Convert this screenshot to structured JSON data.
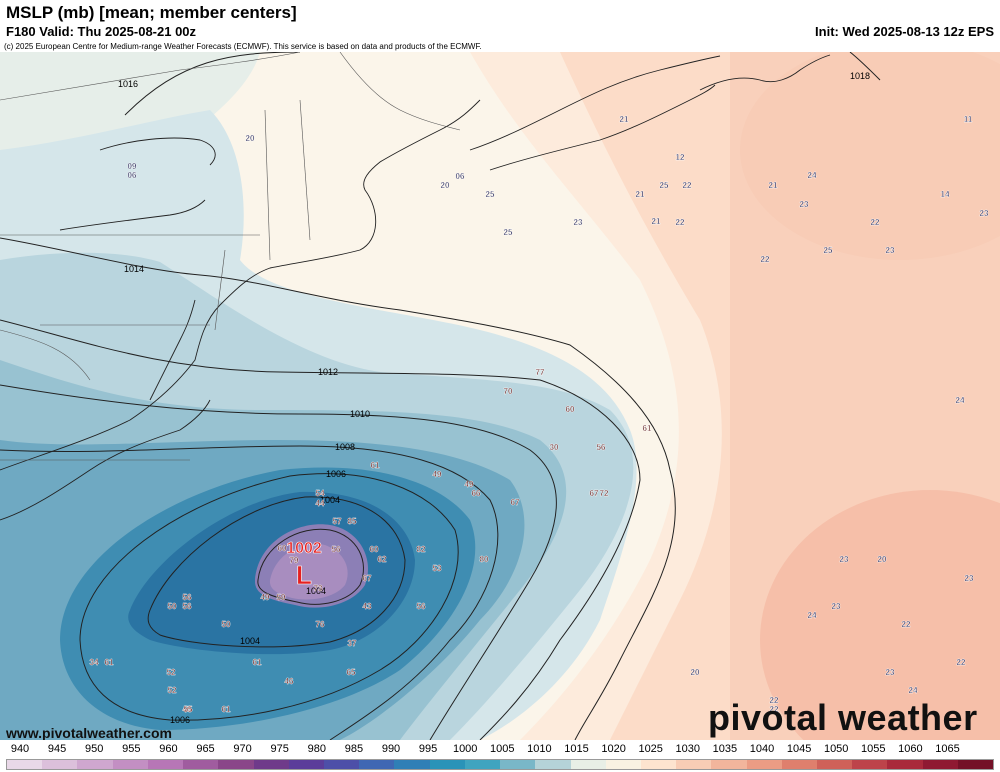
{
  "header": {
    "title": "MSLP (mb) [mean; member centers]",
    "valid": "F180 Valid: Thu 2025-08-21 00z",
    "init": "Init: Wed 2025-08-13 12z EPS",
    "copyright": "(c) 2025 European Centre for Medium-range Weather Forecasts (ECMWF). This service is based on data and products of the ECMWF."
  },
  "watermark": {
    "url": "www.pivotalweather.com",
    "brand": "pivotal weather"
  },
  "low_center": {
    "pressure": "1002",
    "symbol": "L"
  },
  "isobar_labels": [
    "1016",
    "1018",
    "1014",
    "1012",
    "1010",
    "1008",
    "1006",
    "1004",
    "1004",
    "1004",
    "1006"
  ],
  "member_labels": [
    "20",
    "09",
    "06",
    "20",
    "06",
    "25",
    "25",
    "21",
    "12",
    "21",
    "25",
    "22",
    "22",
    "23",
    "21",
    "23",
    "24",
    "22",
    "23",
    "22",
    "25",
    "21",
    "11",
    "14",
    "23",
    "77",
    "70",
    "60",
    "30",
    "56",
    "61",
    "67",
    "72",
    "61",
    "49",
    "49",
    "66",
    "67",
    "54",
    "44",
    "57",
    "85",
    "60",
    "56",
    "60",
    "62",
    "82",
    "79",
    "73",
    "67",
    "53",
    "80",
    "56",
    "50",
    "56",
    "56",
    "49",
    "59",
    "43",
    "50",
    "76",
    "61",
    "52",
    "37",
    "46",
    "34",
    "61",
    "52",
    "40",
    "65",
    "55",
    "61",
    "24",
    "23",
    "20",
    "23",
    "23",
    "24",
    "22",
    "20",
    "22",
    "23",
    "22",
    "22",
    "24"
  ],
  "colorbar": {
    "ticks": [
      "940",
      "945",
      "950",
      "955",
      "960",
      "965",
      "970",
      "975",
      "980",
      "985",
      "990",
      "995",
      "1000",
      "1005",
      "1010",
      "1015",
      "1020",
      "1025",
      "1030",
      "1035",
      "1040",
      "1045",
      "1050",
      "1055",
      "1060",
      "1065"
    ],
    "colors": [
      "#e9d8e8",
      "#dcc0db",
      "#cfa7cf",
      "#c38fc3",
      "#b776b6",
      "#a05c9f",
      "#8a4689",
      "#6f3a8a",
      "#5b3d9a",
      "#4d4fa8",
      "#3f67b3",
      "#2f7fb6",
      "#2a93b8",
      "#3fa4bf",
      "#79b7c8",
      "#b5d3d8",
      "#e8efe6",
      "#f9f2e2",
      "#fde4cf",
      "#f8cdb5",
      "#f2b59c",
      "#eb9c84",
      "#df7f6d",
      "#cf6159",
      "#bd434a",
      "#a9293b",
      "#8f1932",
      "#741027"
    ]
  }
}
